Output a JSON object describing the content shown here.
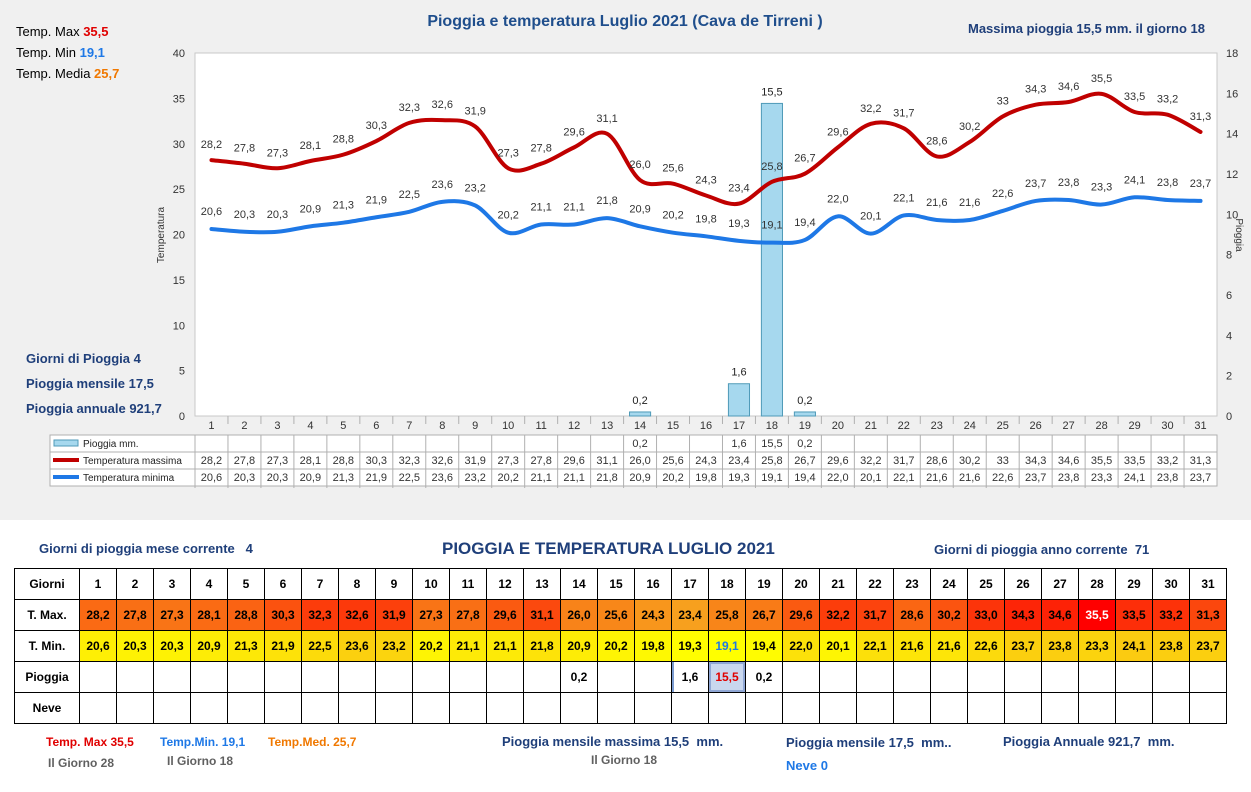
{
  "header": {
    "title": "Pioggia e temperatura Luglio 2021 (Cava de Tirreni )",
    "max_rain_label": "Massima pioggia",
    "max_rain_value": "15,5 mm. il giorno",
    "max_rain_day": "18"
  },
  "summary_top": {
    "tmax_label": "Temp. Max",
    "tmax_value": "35,5",
    "tmin_label": "Temp. Min",
    "tmin_value": "19,1",
    "tmed_label": "Temp. Media",
    "tmed_value": "25,7"
  },
  "summary_left": {
    "rain_days_label": "Giorni di Pioggia",
    "rain_days_value": "4",
    "monthly_label": "Pioggia mensile",
    "monthly_value": "17,5",
    "annual_label": "Pioggia annuale",
    "annual_value": "921,7"
  },
  "colors": {
    "tmax_line": "#c00000",
    "tmin_line": "#1e78e6",
    "rain_bar": "#a6d8ee",
    "tmax_cell_scale": [
      "#f7a01e",
      "#ff0000"
    ],
    "tmin_cell_scale": [
      "#ffff00",
      "#f7a01e"
    ]
  },
  "chart_data": {
    "type": "bar+line",
    "title": "Pioggia e temperatura Luglio 2021 (Cava de Tirreni )",
    "ylabel": "Temperatura",
    "y2label": "Pioggia",
    "ylim": [
      0,
      40
    ],
    "y2lim": [
      0,
      18
    ],
    "yticks": [
      0,
      5,
      10,
      15,
      20,
      25,
      30,
      35,
      40
    ],
    "y2ticks": [
      0,
      2,
      4,
      6,
      8,
      10,
      12,
      14,
      16,
      18
    ],
    "categories": [
      "1",
      "2",
      "3",
      "4",
      "5",
      "6",
      "7",
      "8",
      "9",
      "10",
      "11",
      "12",
      "13",
      "14",
      "15",
      "16",
      "17",
      "18",
      "19",
      "20",
      "21",
      "22",
      "23",
      "24",
      "25",
      "26",
      "27",
      "28",
      "29",
      "30",
      "31"
    ],
    "legend_position": "bottom-table",
    "series": [
      {
        "name": "Pioggia mm.",
        "type": "bar",
        "axis": "y2",
        "values": [
          null,
          null,
          null,
          null,
          null,
          null,
          null,
          null,
          null,
          null,
          null,
          null,
          null,
          0.2,
          null,
          null,
          1.6,
          15.5,
          0.2,
          null,
          null,
          null,
          null,
          null,
          null,
          null,
          null,
          null,
          null,
          null,
          null
        ],
        "labels": [
          "",
          "",
          "",
          "",
          "",
          "",
          "",
          "",
          "",
          "",
          "",
          "",
          "",
          "0,2",
          "",
          "",
          "1,6",
          "15,5",
          "0,2",
          "",
          "",
          "",
          "",
          "",
          "",
          "",
          "",
          "",
          "",
          "",
          ""
        ]
      },
      {
        "name": "Temperatura massima",
        "type": "line",
        "axis": "y",
        "values": [
          28.2,
          27.8,
          27.3,
          28.1,
          28.8,
          30.3,
          32.3,
          32.6,
          31.9,
          27.3,
          27.8,
          29.6,
          31.1,
          26.0,
          25.6,
          24.3,
          23.4,
          25.8,
          26.7,
          29.6,
          32.2,
          31.7,
          28.6,
          30.2,
          33.0,
          34.3,
          34.6,
          35.5,
          33.5,
          33.2,
          31.3
        ],
        "labels": [
          "28,2",
          "27,8",
          "27,3",
          "28,1",
          "28,8",
          "30,3",
          "32,3",
          "32,6",
          "31,9",
          "27,3",
          "27,8",
          "29,6",
          "31,1",
          "26,0",
          "25,6",
          "24,3",
          "23,4",
          "25,8",
          "26,7",
          "29,6",
          "32,2",
          "31,7",
          "28,6",
          "30,2",
          "33",
          "34,3",
          "34,6",
          "35,5",
          "33,5",
          "33,2",
          "31,3"
        ]
      },
      {
        "name": "Temperatura minima",
        "type": "line",
        "axis": "y",
        "values": [
          20.6,
          20.3,
          20.3,
          20.9,
          21.3,
          21.9,
          22.5,
          23.6,
          23.2,
          20.2,
          21.1,
          21.1,
          21.8,
          20.9,
          20.2,
          19.8,
          19.3,
          19.1,
          19.4,
          22.0,
          20.1,
          22.1,
          21.6,
          21.6,
          22.6,
          23.7,
          23.8,
          23.3,
          24.1,
          23.8,
          23.7
        ],
        "labels": [
          "20,6",
          "20,3",
          "20,3",
          "20,9",
          "21,3",
          "21,9",
          "22,5",
          "23,6",
          "23,2",
          "20,2",
          "21,1",
          "21,1",
          "21,8",
          "20,9",
          "20,2",
          "19,8",
          "19,3",
          "19,1",
          "19,4",
          "22,0",
          "20,1",
          "22,1",
          "21,6",
          "21,6",
          "22,6",
          "23,7",
          "23,8",
          "23,3",
          "24,1",
          "23,8",
          "23,7"
        ]
      }
    ]
  },
  "bottom": {
    "rain_days_month_label": "Giorni di pioggia mese corrente",
    "rain_days_month_value": "4",
    "title": "PIOGGIA E TEMPERATURA LUGLIO 2021",
    "rain_days_year_label": "Giorni di pioggia anno corrente",
    "rain_days_year_value": "71",
    "table": {
      "row_labels": [
        "Giorni",
        "T. Max.",
        "T. Min.",
        "Pioggia",
        "Neve"
      ],
      "tmax": [
        "28,2",
        "27,8",
        "27,3",
        "28,1",
        "28,8",
        "30,3",
        "32,3",
        "32,6",
        "31,9",
        "27,3",
        "27,8",
        "29,6",
        "31,1",
        "26,0",
        "25,6",
        "24,3",
        "23,4",
        "25,8",
        "26,7",
        "29,6",
        "32,2",
        "31,7",
        "28,6",
        "30,2",
        "33,0",
        "34,3",
        "34,6",
        "35,5",
        "33,5",
        "33,2",
        "31,3"
      ],
      "tmin": [
        "20,6",
        "20,3",
        "20,3",
        "20,9",
        "21,3",
        "21,9",
        "22,5",
        "23,6",
        "23,2",
        "20,2",
        "21,1",
        "21,1",
        "21,8",
        "20,9",
        "20,2",
        "19,8",
        "19,3",
        "19,1",
        "19,4",
        "22,0",
        "20,1",
        "22,1",
        "21,6",
        "21,6",
        "22,6",
        "23,7",
        "23,8",
        "23,3",
        "24,1",
        "23,8",
        "23,7"
      ],
      "rain": [
        "",
        "",
        "",
        "",
        "",
        "",
        "",
        "",
        "",
        "",
        "",
        "",
        "",
        "0,2",
        "",
        "",
        "1,6",
        "15,5",
        "0,2",
        "",
        "",
        "",
        "",
        "",
        "",
        "",
        "",
        "",
        "",
        "",
        ""
      ],
      "snow": [
        "",
        "",
        "",
        "",
        "",
        "",
        "",
        "",
        "",
        "",
        "",
        "",
        "",
        "",
        "",
        "",
        "",
        "",
        "",
        "",
        "",
        "",
        "",
        "",
        "",
        "",
        "",
        "",
        "",
        "",
        ""
      ]
    },
    "footer": {
      "tmax_label": "Temp. Max",
      "tmax_value": "35,5",
      "tmax_day": "Il Giorno  28",
      "tmin_label": "Temp.Min.",
      "tmin_value": "19,1",
      "tmin_day": "Il Giorno 18",
      "tmed_label": "Temp.Med.",
      "tmed_value": "25,7",
      "max_monthly_label": "Pioggia mensile massima",
      "max_monthly_value": "15,5",
      "max_monthly_unit": "mm.",
      "max_monthly_day": "Il Giorno 18",
      "monthly_label": "Pioggia mensile",
      "monthly_value": "17,5",
      "monthly_unit": "mm..",
      "annual_label": "Pioggia Annuale",
      "annual_value": "921,7",
      "annual_unit": "mm.",
      "snow_label": "Neve",
      "snow_value": "0"
    }
  }
}
